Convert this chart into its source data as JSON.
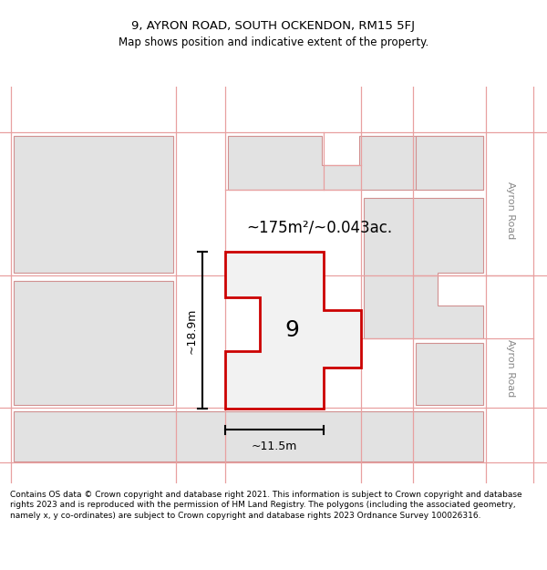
{
  "title_line1": "9, AYRON ROAD, SOUTH OCKENDON, RM15 5FJ",
  "title_line2": "Map shows position and indicative extent of the property.",
  "footer_text": "Contains OS data © Crown copyright and database right 2021. This information is subject to Crown copyright and database rights 2023 and is reproduced with the permission of HM Land Registry. The polygons (including the associated geometry, namely x, y co-ordinates) are subject to Crown copyright and database rights 2023 Ordnance Survey 100026316.",
  "area_label": "~175m²/~0.043ac.",
  "number_label": "9",
  "dim_height": "~18.9m",
  "dim_width": "~11.5m",
  "road_label_top": "Ayron Road",
  "road_label_bottom": "Ayron Road",
  "bg_color": "#ffffff",
  "border_color": "#e8a0a0",
  "main_outline_color": "#cc0000",
  "neighbor_fill": "#e2e2e2",
  "neighbor_stroke": "#d09090"
}
